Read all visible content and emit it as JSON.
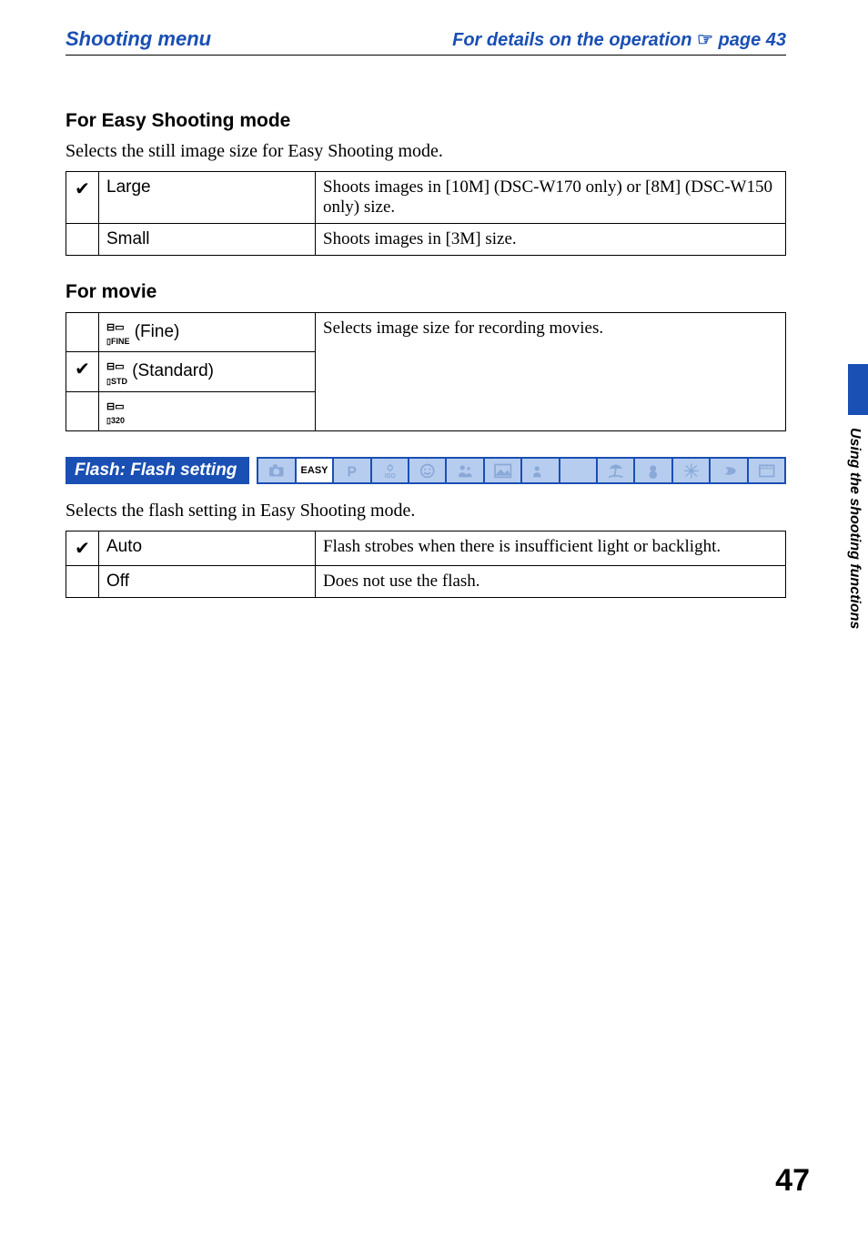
{
  "header": {
    "left": "Shooting menu",
    "right_prefix": "For details on the operation ",
    "right_icon": "☞",
    "right_suffix": " page 43"
  },
  "easy": {
    "title": "For Easy Shooting mode",
    "desc": "Selects the still image size for Easy Shooting mode.",
    "rows": [
      {
        "check": "✔",
        "label": "Large",
        "desc": "Shoots images in [10M] (DSC-W170 only) or [8M] (DSC-W150 only) size."
      },
      {
        "check": "",
        "label": "Small",
        "desc": "Shoots images in [3M] size."
      }
    ]
  },
  "movie": {
    "title": "For movie",
    "rows": [
      {
        "check": "",
        "glyph": "FINE",
        "label": " (Fine)",
        "desc": "Selects image size for recording movies."
      },
      {
        "check": "✔",
        "glyph": "STD",
        "label": " (Standard)",
        "desc": ""
      },
      {
        "check": "",
        "glyph": "320",
        "label": "",
        "desc": ""
      }
    ]
  },
  "flash": {
    "title": "Flash: Flash setting",
    "desc": "Selects the flash setting in Easy Shooting mode.",
    "rows": [
      {
        "check": "✔",
        "label": "Auto",
        "desc": "Flash strobes when there is insufficient light or backlight."
      },
      {
        "check": "",
        "label": "Off",
        "desc": "Does not use the flash."
      }
    ],
    "mode_icons": [
      {
        "kind": "camera",
        "active": false
      },
      {
        "kind": "easy",
        "active": true
      },
      {
        "kind": "p",
        "active": false
      },
      {
        "kind": "iso",
        "active": false
      },
      {
        "kind": "smile",
        "active": false
      },
      {
        "kind": "portrait",
        "active": false
      },
      {
        "kind": "landscape",
        "active": false
      },
      {
        "kind": "twilightp",
        "active": false
      },
      {
        "kind": "moon",
        "active": false
      },
      {
        "kind": "beach",
        "active": false
      },
      {
        "kind": "snow",
        "active": false
      },
      {
        "kind": "fireworks",
        "active": false
      },
      {
        "kind": "close",
        "active": false
      },
      {
        "kind": "movie",
        "active": false
      }
    ]
  },
  "side_tab": "Using the shooting functions",
  "page_number": "47",
  "colors": {
    "blue": "#1a4fb3",
    "light_blue": "#b7cdef",
    "icon_off": "#8aa9d8"
  }
}
